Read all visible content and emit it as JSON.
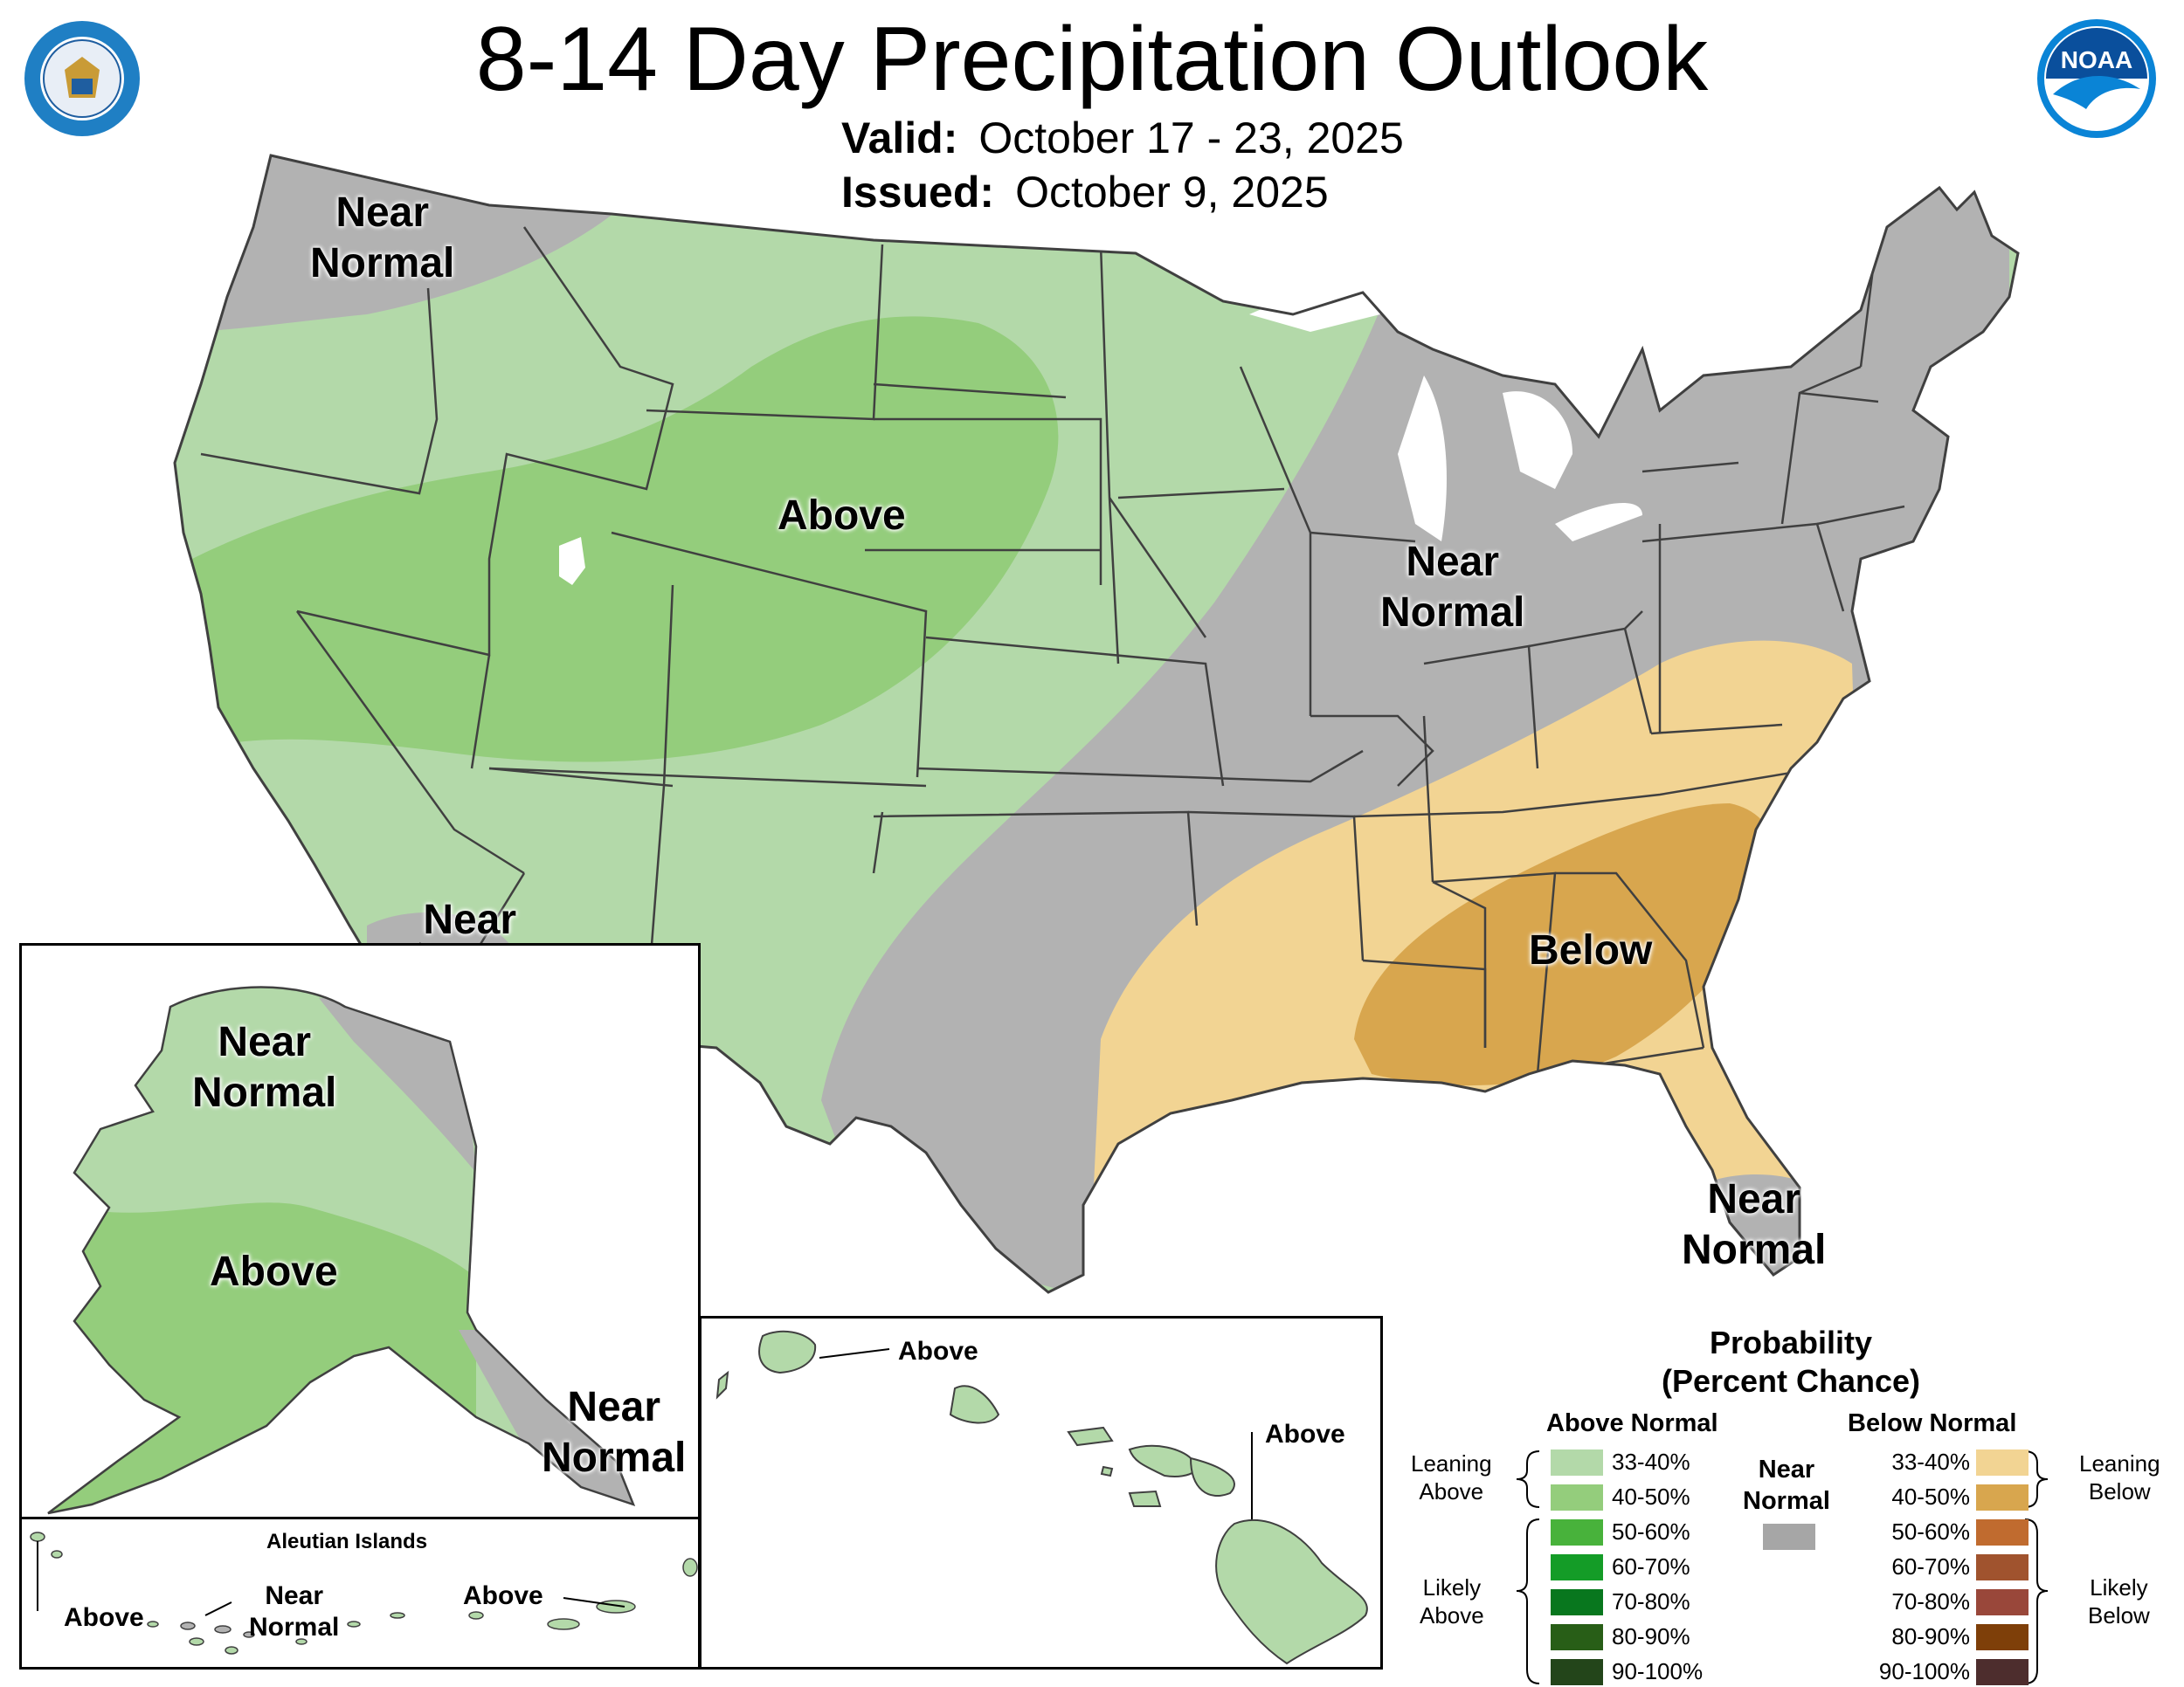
{
  "header": {
    "title": "8-14 Day Precipitation Outlook",
    "valid_label": "Valid:",
    "valid_value": "October 17 - 23, 2025",
    "issued_label": "Issued:",
    "issued_value": "October 9, 2025",
    "left_logo_icon": "department-of-commerce-seal-icon",
    "right_logo_icon": "noaa-logo-icon"
  },
  "map_labels": {
    "nw": "Near\nNormal",
    "above_central": "Above",
    "near_normal_east": "Near\nNormal",
    "below": "Below",
    "sw": "Near\nNormal",
    "florida": "Near\nNormal"
  },
  "alaska": {
    "near_normal_north": "Near\nNormal",
    "above": "Above",
    "near_normal_se": "Near\nNormal",
    "aleutian_title": "Aleutian Islands",
    "aleutian_above_west": "Above",
    "aleutian_near_normal": "Near\nNormal",
    "aleutian_above_east": "Above"
  },
  "hawaii": {
    "above_kauai": "Above",
    "above_big_island": "Above"
  },
  "legend": {
    "title": "Probability\n(Percent Chance)",
    "above_header": "Above Normal",
    "below_header": "Below Normal",
    "near_header": "Near\nNormal",
    "leaning_above": "Leaning\nAbove",
    "likely_above": "Likely\nAbove",
    "leaning_below": "Leaning\nBelow",
    "likely_below": "Likely\nBelow",
    "ranges": [
      "33-40%",
      "40-50%",
      "50-60%",
      "60-70%",
      "70-80%",
      "80-90%",
      "90-100%"
    ],
    "above_colors": [
      "#b3d9a9",
      "#94cd7c",
      "#48b23b",
      "#149c27",
      "#08771e",
      "#285e17",
      "#23451a"
    ],
    "below_colors": [
      "#f2d493",
      "#d8a64e",
      "#c06b2f",
      "#a0532e",
      "#99473a",
      "#7e3f09",
      "#4d2d2d"
    ],
    "near_color": "#a6a6a6"
  },
  "colors": {
    "leaning_above": "#b3d9a9",
    "above_40_50": "#94cd7c",
    "near_normal": "#b2b2b2",
    "leaning_below": "#f2d493",
    "below_40_50": "#d8a64e",
    "border": "#404040"
  }
}
